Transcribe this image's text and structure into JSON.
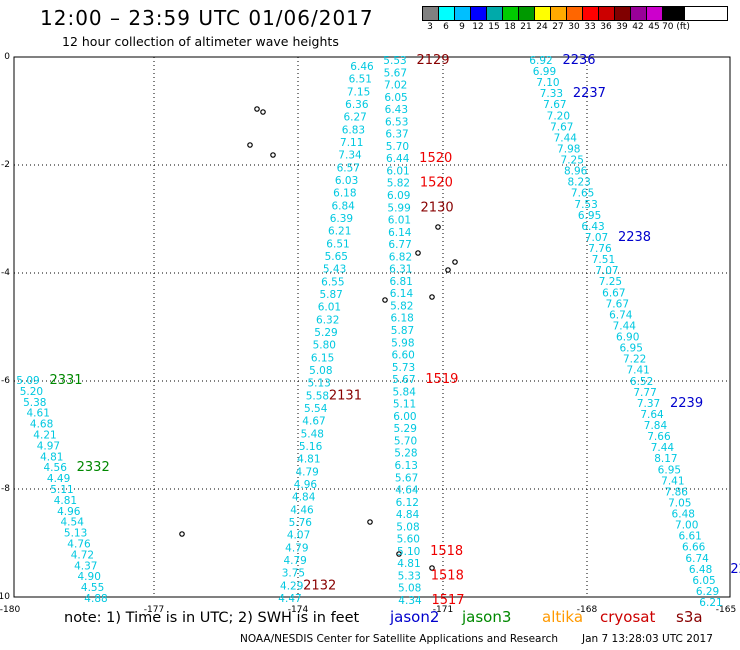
{
  "title": "12:00 – 23:59 UTC 01/06/2017",
  "subtitle": "12 hour collection of altimeter wave heights",
  "color_scale": {
    "labels": [
      "3",
      "6",
      "9",
      "12",
      "15",
      "18",
      "21",
      "24",
      "27",
      "30",
      "33",
      "36",
      "39",
      "42",
      "45",
      "70 (ft)"
    ],
    "colors": [
      "#808080",
      "#00ffff",
      "#00bfff",
      "#0000ff",
      "#00aaaa",
      "#00cc00",
      "#009900",
      "#ffff00",
      "#ffaa00",
      "#ff6600",
      "#ff0000",
      "#cc0000",
      "#800000",
      "#990099",
      "#cc00cc",
      "#000000"
    ]
  },
  "map": {
    "lon_labels": [
      "-180",
      "-177",
      "-174",
      "-171",
      "-168",
      "-165"
    ],
    "lat_labels": [
      "0",
      "-2",
      "-4",
      "-6",
      "-8",
      "-10"
    ]
  },
  "tracks": [
    {
      "id": "t1",
      "color": "#0000cc",
      "label_color": "#00cccc",
      "values": [
        "6.92",
        "6.99",
        "7.10",
        "7.33",
        "7.67",
        "7.20",
        "7.67",
        "7.44",
        "7.98",
        "7.25",
        "8.96",
        "8.23",
        "7.65",
        "7.53",
        "6.95",
        "6.43",
        "7.07",
        "7.76",
        "7.51",
        "7.07",
        "7.25",
        "6.67",
        "7.67",
        "6.74",
        "7.44",
        "6.90",
        "6.95",
        "7.22",
        "7.41",
        "6.52",
        "7.77",
        "7.37",
        "7.64",
        "7.84",
        "7.66",
        "7.44",
        "8.17",
        "6.95",
        "7.41",
        "7.86",
        "7.05",
        "6.48",
        "7.00",
        "6.61",
        "6.66",
        "6.74",
        "6.48",
        "6.05",
        "6.29",
        "6.21"
      ],
      "times": [
        {
          "text": "2236",
          "idx": 0
        },
        {
          "text": "2237",
          "idx": 3
        },
        {
          "text": "2238",
          "idx": 16
        },
        {
          "text": "2239",
          "idx": 31
        },
        {
          "text": "22",
          "idx": 46
        }
      ]
    },
    {
      "id": "t2",
      "values": [
        "5.53",
        "5.67",
        "7.02",
        "6.05",
        "6.43",
        "6.53",
        "6.37",
        "5.70",
        "6.44",
        "6.01",
        "5.82",
        "6.09",
        "5.99",
        "6.01",
        "6.14",
        "6.77",
        "6.82",
        "6.31",
        "6.81",
        "6.14",
        "5.82",
        "6.18",
        "5.87",
        "5.98",
        "6.60",
        "5.73",
        "5.67",
        "5.84",
        "5.11",
        "6.00",
        "5.29",
        "5.70",
        "5.28",
        "6.13",
        "5.67",
        "4.64",
        "6.12",
        "4.84",
        "5.08",
        "5.60",
        "5.10",
        "4.81",
        "5.33",
        "5.08",
        "4.34"
      ],
      "times": [
        {
          "text": "2129",
          "idx": 0
        },
        {
          "text": "1520",
          "idx": 8
        },
        {
          "text": "1520",
          "idx": 10
        },
        {
          "text": "2130",
          "idx": 12
        },
        {
          "text": "1519",
          "idx": 26
        },
        {
          "text": "1518",
          "idx": 40
        },
        {
          "text": "1518",
          "idx": 42
        },
        {
          "text": "1517",
          "idx": 44
        }
      ]
    },
    {
      "id": "t3",
      "values": [
        "6.46",
        "6.51",
        "7.15",
        "6.36",
        "6.27",
        "6.83",
        "7.11",
        "7.34",
        "6.57",
        "6.03",
        "6.18",
        "6.84",
        "6.39",
        "6.21",
        "6.51",
        "5.65",
        "5.43",
        "6.55",
        "5.87",
        "6.01",
        "6.32",
        "5.29",
        "5.80",
        "6.15",
        "5.08",
        "5.13",
        "5.58",
        "5.54",
        "4.67",
        "5.48",
        "5.16",
        "4.81",
        "4.79",
        "4.96",
        "4.84",
        "4.46",
        "5.76",
        "4.07",
        "4.79",
        "4.79",
        "3.75",
        "4.29",
        "4.47"
      ],
      "times": [
        {
          "text": "2131",
          "idx": 26
        },
        {
          "text": "2132",
          "idx": 41
        }
      ]
    },
    {
      "id": "t4",
      "values": [
        "5.09",
        "5.20",
        "5.38",
        "4.61",
        "4.68",
        "4.21",
        "4.97",
        "4.81",
        "4.56",
        "4.49",
        "5.11",
        "4.81",
        "4.96",
        "4.54",
        "5.13",
        "4.76",
        "4.72",
        "4.37",
        "4.90",
        "4.55",
        "4.88"
      ],
      "times": [
        {
          "text": "2331",
          "idx": 0
        },
        {
          "text": "2332",
          "idx": 8
        }
      ]
    }
  ],
  "footer": {
    "note": "note: 1) Time is in UTC; 2) SWH is in feet",
    "satellites": [
      {
        "name": "jason2",
        "color": "#0000cc"
      },
      {
        "name": "jason3",
        "color": "#008800"
      },
      {
        "name": "altika",
        "color": "#ff9900"
      },
      {
        "name": "cryosat",
        "color": "#cc0000"
      },
      {
        "name": "s3a",
        "color": "#880000"
      }
    ],
    "credit": "NOAA/NESDIS Center for Satellite Applications and Research",
    "generated": "Jan  7 13:28:03 UTC 2017"
  }
}
